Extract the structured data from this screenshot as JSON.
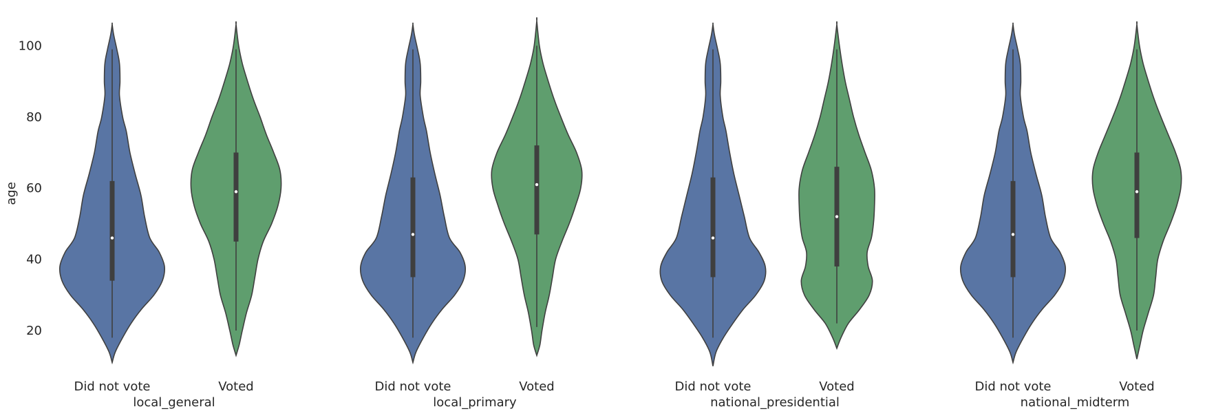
{
  "chart_data": {
    "type": "violin",
    "ylabel": "age",
    "ylim": [
      10,
      107
    ],
    "yticks": [
      20,
      40,
      60,
      80,
      100
    ],
    "grid": false,
    "categories": [
      "Did not vote",
      "Voted"
    ],
    "colors": {
      "Did not vote": "#5975a4",
      "Voted": "#5f9e6e",
      "outline": "#3f3f3f",
      "box": "#3f3f3f",
      "median": "#ffffff"
    },
    "panels": [
      {
        "label": "local_general",
        "violins": [
          {
            "category": "Did not vote",
            "range": [
              11,
              106
            ],
            "quartiles": [
              34,
              46,
              62
            ],
            "whiskers": [
              18,
              99
            ],
            "profile": [
              [
                11,
                0.0
              ],
              [
                14,
                0.06
              ],
              [
                18,
                0.2
              ],
              [
                22,
                0.36
              ],
              [
                26,
                0.56
              ],
              [
                30,
                0.8
              ],
              [
                34,
                0.96
              ],
              [
                38,
                1.0
              ],
              [
                42,
                0.9
              ],
              [
                46,
                0.72
              ],
              [
                52,
                0.62
              ],
              [
                58,
                0.55
              ],
              [
                64,
                0.44
              ],
              [
                70,
                0.34
              ],
              [
                76,
                0.27
              ],
              [
                80,
                0.2
              ],
              [
                86,
                0.14
              ],
              [
                90,
                0.15
              ],
              [
                95,
                0.14
              ],
              [
                99,
                0.09
              ],
              [
                103,
                0.03
              ],
              [
                106,
                0.0
              ]
            ]
          },
          {
            "category": "Voted",
            "range": [
              13,
              106
            ],
            "quartiles": [
              45,
              59,
              70
            ],
            "whiskers": [
              20,
              99
            ],
            "profile": [
              [
                13,
                0.0
              ],
              [
                16,
                0.06
              ],
              [
                20,
                0.12
              ],
              [
                25,
                0.2
              ],
              [
                30,
                0.3
              ],
              [
                35,
                0.36
              ],
              [
                40,
                0.42
              ],
              [
                45,
                0.52
              ],
              [
                50,
                0.68
              ],
              [
                55,
                0.8
              ],
              [
                60,
                0.86
              ],
              [
                65,
                0.84
              ],
              [
                70,
                0.72
              ],
              [
                75,
                0.58
              ],
              [
                80,
                0.46
              ],
              [
                85,
                0.33
              ],
              [
                90,
                0.22
              ],
              [
                95,
                0.12
              ],
              [
                100,
                0.05
              ],
              [
                106,
                0.0
              ]
            ]
          }
        ]
      },
      {
        "label": "local_primary",
        "violins": [
          {
            "category": "Did not vote",
            "range": [
              11,
              106
            ],
            "quartiles": [
              35,
              47,
              63
            ],
            "whiskers": [
              18,
              99
            ],
            "profile": [
              [
                11,
                0.0
              ],
              [
                14,
                0.06
              ],
              [
                18,
                0.2
              ],
              [
                22,
                0.36
              ],
              [
                26,
                0.56
              ],
              [
                30,
                0.8
              ],
              [
                34,
                0.96
              ],
              [
                38,
                1.0
              ],
              [
                42,
                0.9
              ],
              [
                46,
                0.7
              ],
              [
                52,
                0.6
              ],
              [
                58,
                0.52
              ],
              [
                64,
                0.42
              ],
              [
                70,
                0.33
              ],
              [
                76,
                0.26
              ],
              [
                80,
                0.2
              ],
              [
                86,
                0.14
              ],
              [
                90,
                0.15
              ],
              [
                95,
                0.14
              ],
              [
                99,
                0.09
              ],
              [
                103,
                0.03
              ],
              [
                106,
                0.0
              ]
            ]
          },
          {
            "category": "Voted",
            "range": [
              13,
              107
            ],
            "quartiles": [
              47,
              61,
              72
            ],
            "whiskers": [
              21,
              100
            ],
            "profile": [
              [
                13,
                0.0
              ],
              [
                16,
                0.06
              ],
              [
                20,
                0.1
              ],
              [
                25,
                0.16
              ],
              [
                30,
                0.24
              ],
              [
                35,
                0.3
              ],
              [
                40,
                0.36
              ],
              [
                45,
                0.48
              ],
              [
                50,
                0.62
              ],
              [
                55,
                0.74
              ],
              [
                60,
                0.84
              ],
              [
                65,
                0.86
              ],
              [
                70,
                0.76
              ],
              [
                75,
                0.6
              ],
              [
                80,
                0.46
              ],
              [
                85,
                0.33
              ],
              [
                90,
                0.22
              ],
              [
                95,
                0.12
              ],
              [
                100,
                0.05
              ],
              [
                107,
                0.0
              ]
            ]
          }
        ]
      },
      {
        "label": "national_presidential",
        "violins": [
          {
            "category": "Did not vote",
            "range": [
              10,
              106
            ],
            "quartiles": [
              35,
              46,
              63
            ],
            "whiskers": [
              18,
              99
            ],
            "profile": [
              [
                10,
                0.0
              ],
              [
                14,
                0.06
              ],
              [
                18,
                0.2
              ],
              [
                22,
                0.38
              ],
              [
                26,
                0.58
              ],
              [
                30,
                0.82
              ],
              [
                34,
                0.98
              ],
              [
                38,
                1.0
              ],
              [
                42,
                0.88
              ],
              [
                46,
                0.7
              ],
              [
                52,
                0.6
              ],
              [
                58,
                0.5
              ],
              [
                64,
                0.4
              ],
              [
                70,
                0.32
              ],
              [
                76,
                0.25
              ],
              [
                80,
                0.19
              ],
              [
                86,
                0.14
              ],
              [
                90,
                0.15
              ],
              [
                95,
                0.14
              ],
              [
                99,
                0.09
              ],
              [
                103,
                0.03
              ],
              [
                106,
                0.0
              ]
            ]
          },
          {
            "category": "Voted",
            "range": [
              15,
              106
            ],
            "quartiles": [
              38,
              52,
              66
            ],
            "whiskers": [
              22,
              99
            ],
            "profile": [
              [
                15,
                0.0
              ],
              [
                18,
                0.08
              ],
              [
                22,
                0.22
              ],
              [
                26,
                0.44
              ],
              [
                30,
                0.62
              ],
              [
                34,
                0.68
              ],
              [
                38,
                0.6
              ],
              [
                42,
                0.58
              ],
              [
                46,
                0.66
              ],
              [
                50,
                0.7
              ],
              [
                55,
                0.72
              ],
              [
                60,
                0.72
              ],
              [
                65,
                0.66
              ],
              [
                70,
                0.54
              ],
              [
                75,
                0.42
              ],
              [
                80,
                0.32
              ],
              [
                85,
                0.24
              ],
              [
                90,
                0.16
              ],
              [
                95,
                0.1
              ],
              [
                100,
                0.05
              ],
              [
                106,
                0.0
              ]
            ]
          }
        ]
      },
      {
        "label": "national_midterm",
        "violins": [
          {
            "category": "Did not vote",
            "range": [
              11,
              106
            ],
            "quartiles": [
              35,
              47,
              62
            ],
            "whiskers": [
              18,
              99
            ],
            "profile": [
              [
                11,
                0.0
              ],
              [
                14,
                0.06
              ],
              [
                18,
                0.2
              ],
              [
                22,
                0.36
              ],
              [
                26,
                0.56
              ],
              [
                30,
                0.8
              ],
              [
                34,
                0.96
              ],
              [
                38,
                1.0
              ],
              [
                42,
                0.9
              ],
              [
                46,
                0.72
              ],
              [
                52,
                0.62
              ],
              [
                58,
                0.55
              ],
              [
                64,
                0.44
              ],
              [
                70,
                0.34
              ],
              [
                76,
                0.27
              ],
              [
                80,
                0.2
              ],
              [
                86,
                0.14
              ],
              [
                90,
                0.15
              ],
              [
                95,
                0.14
              ],
              [
                99,
                0.09
              ],
              [
                103,
                0.03
              ],
              [
                106,
                0.0
              ]
            ]
          },
          {
            "category": "Voted",
            "range": [
              12,
              106
            ],
            "quartiles": [
              46,
              59,
              70
            ],
            "whiskers": [
              20,
              99
            ],
            "profile": [
              [
                12,
                0.0
              ],
              [
                16,
                0.06
              ],
              [
                20,
                0.12
              ],
              [
                25,
                0.22
              ],
              [
                30,
                0.32
              ],
              [
                35,
                0.36
              ],
              [
                40,
                0.4
              ],
              [
                45,
                0.5
              ],
              [
                50,
                0.64
              ],
              [
                55,
                0.76
              ],
              [
                60,
                0.84
              ],
              [
                65,
                0.84
              ],
              [
                70,
                0.74
              ],
              [
                75,
                0.6
              ],
              [
                80,
                0.46
              ],
              [
                85,
                0.33
              ],
              [
                90,
                0.22
              ],
              [
                95,
                0.12
              ],
              [
                100,
                0.05
              ],
              [
                106,
                0.0
              ]
            ]
          }
        ]
      }
    ]
  }
}
